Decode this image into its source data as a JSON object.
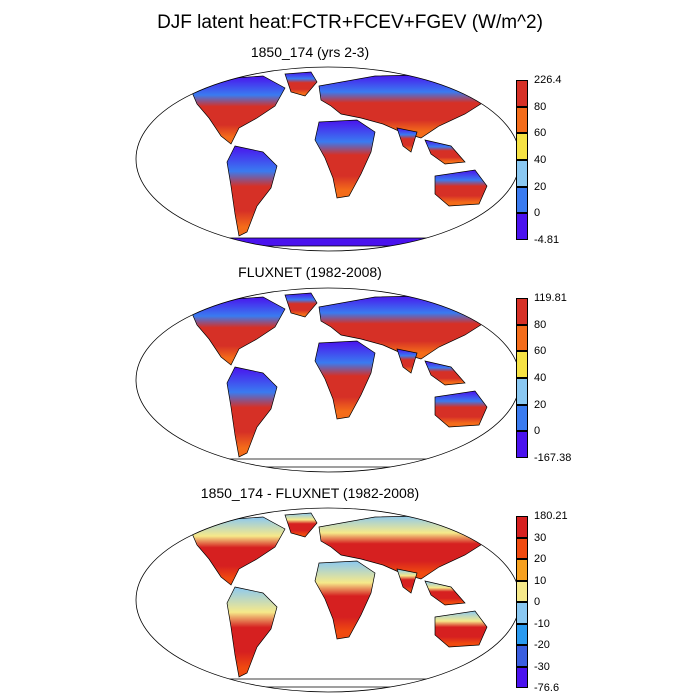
{
  "title": "DJF latent heat:FCTR+FCEV+FGEV (W/m^2)",
  "panels": [
    {
      "name": "model",
      "title": "1850_174 (yrs 2-3)",
      "colorbar": {
        "colors": [
          "#4a12ee",
          "#3a7bf0",
          "#8ac8f2",
          "#f6e244",
          "#f46c1a",
          "#d63026"
        ],
        "labels": [
          "-4.81",
          "0",
          "20",
          "40",
          "60",
          "80",
          "226.4"
        ]
      },
      "fields": {
        "north": "#4a12ee",
        "mid": "#3a7bf0",
        "tropics": "#d63026",
        "south": "#f46c1a",
        "antarctica": "#4a12ee"
      }
    },
    {
      "name": "fluxnet",
      "title": "FLUXNET (1982-2008)",
      "colorbar": {
        "colors": [
          "#4a12ee",
          "#3a7bf0",
          "#8ac8f2",
          "#f6e244",
          "#f46c1a",
          "#d63026"
        ],
        "labels": [
          "-167.38",
          "0",
          "20",
          "40",
          "60",
          "80",
          "119.81"
        ]
      },
      "fields": {
        "north": "#4a12ee",
        "mid": "#3a7bf0",
        "tropics": "#d63026",
        "south": "#f46c1a",
        "antarctica": null
      }
    },
    {
      "name": "difference",
      "title": "1850_174 - FLUXNET (1982-2008)",
      "colorbar": {
        "colors": [
          "#4a12ee",
          "#3a5ee0",
          "#2a9af0",
          "#8ac8f2",
          "#f6e98a",
          "#f6a020",
          "#f04a10",
          "#d62020"
        ],
        "labels": [
          "-76.6",
          "-30",
          "-20",
          "-10",
          "0",
          "10",
          "20",
          "30",
          "180.21"
        ]
      },
      "fields": {
        "north": "#8ac8f2",
        "mid": "#f6e98a",
        "tropics": "#d62020",
        "south": "#f04a10",
        "antarctica": null
      }
    }
  ]
}
